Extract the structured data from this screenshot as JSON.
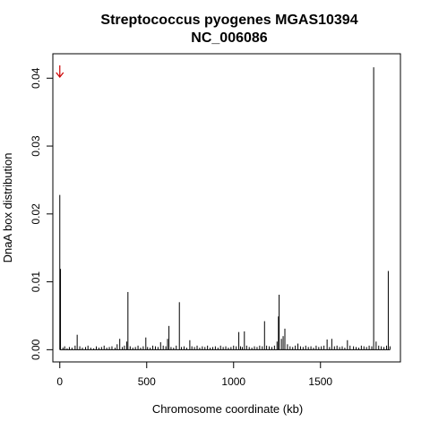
{
  "chart_data": {
    "type": "bar",
    "title_lines": [
      "Streptococcus pyogenes MGAS10394",
      "NC_006086"
    ],
    "xlabel": "Chromosome coordinate (kb)",
    "ylabel": "DnaA box distribution",
    "xlim": [
      -40,
      1960
    ],
    "ylim": [
      -0.0018,
      0.0436
    ],
    "xticks": [
      0,
      500,
      1000,
      1500
    ],
    "xtick_labels": [
      "0",
      "500",
      "1000",
      "1500"
    ],
    "yticks": [
      0.0,
      0.01,
      0.02,
      0.03,
      0.04
    ],
    "ytick_labels": [
      "0.00",
      "0.01",
      "0.02",
      "0.03",
      "0.04"
    ],
    "grid": false,
    "bar_color": "#000000",
    "annotation": {
      "symbol": "arrow-down",
      "color": "#cc0000",
      "x_kb": 0
    },
    "series": [
      {
        "x": [
          0,
          4,
          18,
          28,
          42,
          55,
          70,
          88,
          100,
          115,
          130,
          148,
          162,
          178,
          195,
          210,
          225,
          240,
          255,
          270,
          285,
          300,
          318,
          330,
          345,
          360,
          372,
          385,
          392,
          405,
          420,
          435,
          450,
          465,
          480,
          495,
          505,
          520,
          535,
          550,
          565,
          580,
          595,
          610,
          620,
          628,
          640,
          655,
          670,
          688,
          700,
          715,
          730,
          748,
          760,
          775,
          790,
          805,
          820,
          835,
          850,
          865,
          880,
          895,
          910,
          925,
          940,
          955,
          970,
          985,
          1000,
          1015,
          1030,
          1040,
          1050,
          1062,
          1075,
          1090,
          1105,
          1120,
          1135,
          1150,
          1165,
          1178,
          1190,
          1205,
          1220,
          1235,
          1250,
          1258,
          1262,
          1275,
          1285,
          1295,
          1310,
          1325,
          1340,
          1355,
          1370,
          1385,
          1400,
          1415,
          1430,
          1445,
          1460,
          1475,
          1490,
          1505,
          1520,
          1538,
          1552,
          1565,
          1580,
          1595,
          1610,
          1625,
          1640,
          1655,
          1670,
          1690,
          1705,
          1720,
          1735,
          1750,
          1765,
          1780,
          1795,
          1806,
          1820,
          1835,
          1850,
          1865,
          1880,
          1890,
          1900
        ],
        "values": [
          0.0228,
          0.0119,
          0.0003,
          0.0005,
          0.0002,
          0.0004,
          0.0003,
          0.0006,
          0.0022,
          0.0005,
          0.0003,
          0.0004,
          0.0006,
          0.0003,
          0.0002,
          0.0005,
          0.0003,
          0.0004,
          0.0006,
          0.0003,
          0.0004,
          0.0005,
          0.0003,
          0.0008,
          0.0016,
          0.0004,
          0.0006,
          0.0012,
          0.0085,
          0.0005,
          0.0003,
          0.0004,
          0.0006,
          0.0003,
          0.0005,
          0.0018,
          0.0004,
          0.0003,
          0.0006,
          0.0005,
          0.0004,
          0.0011,
          0.0006,
          0.0005,
          0.0016,
          0.0035,
          0.0004,
          0.0003,
          0.0006,
          0.007,
          0.0004,
          0.0005,
          0.0003,
          0.0014,
          0.0005,
          0.0004,
          0.0006,
          0.0003,
          0.0005,
          0.0004,
          0.0006,
          0.0003,
          0.0004,
          0.0005,
          0.0003,
          0.0006,
          0.0004,
          0.0005,
          0.0003,
          0.0004,
          0.0006,
          0.0005,
          0.0026,
          0.0005,
          0.0004,
          0.0027,
          0.0006,
          0.0004,
          0.0003,
          0.0005,
          0.0004,
          0.0006,
          0.0005,
          0.0042,
          0.0006,
          0.0005,
          0.0004,
          0.0006,
          0.0012,
          0.0049,
          0.0081,
          0.0016,
          0.002,
          0.0031,
          0.0008,
          0.0005,
          0.0004,
          0.0006,
          0.0009,
          0.0005,
          0.0004,
          0.0006,
          0.0004,
          0.0005,
          0.0003,
          0.0006,
          0.0004,
          0.0005,
          0.0006,
          0.0015,
          0.0004,
          0.0016,
          0.0005,
          0.0006,
          0.0004,
          0.0005,
          0.0003,
          0.0014,
          0.0006,
          0.0005,
          0.0004,
          0.0003,
          0.0006,
          0.0005,
          0.0004,
          0.0006,
          0.0005,
          0.0416,
          0.0012,
          0.0006,
          0.0005,
          0.0004,
          0.0006,
          0.0116,
          0.0005
        ]
      }
    ]
  }
}
